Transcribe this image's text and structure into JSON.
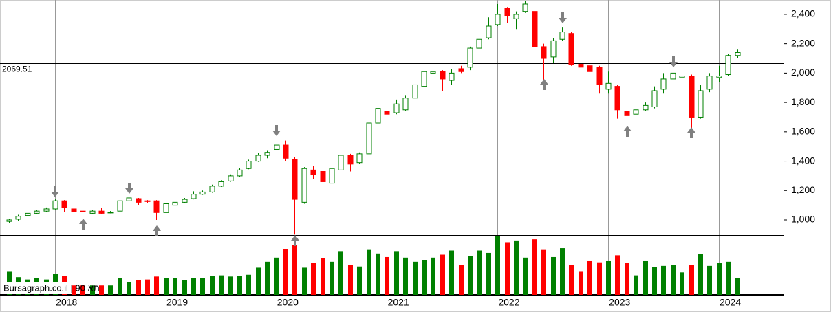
{
  "chart_data": {
    "type": "candlestick",
    "open": [
      990,
      1005,
      1030,
      1045,
      1060,
      1075,
      1130,
      1075,
      1060,
      1045,
      1060,
      1050,
      1060,
      1130,
      1145,
      1130,
      1130,
      1050,
      1100,
      1120,
      1145,
      1175,
      1190,
      1230,
      1265,
      1300,
      1350,
      1400,
      1440,
      1480,
      1510,
      1410,
      1120,
      1340,
      1330,
      1250,
      1340,
      1440,
      1390,
      1450,
      1660,
      1740,
      1730,
      1750,
      1830,
      1910,
      2000,
      2010,
      1950,
      2030,
      2040,
      2170,
      2240,
      2330,
      2440,
      2370,
      2420,
      2420,
      2180,
      2110,
      2230,
      2270,
      2060,
      2050,
      2040,
      1890,
      1910,
      1740,
      1720,
      1750,
      1770,
      1890,
      1960,
      1970,
      1980,
      1700,
      1890,
      1970,
      1990,
      2120
    ],
    "high": [
      1005,
      1035,
      1055,
      1070,
      1085,
      1140,
      1135,
      1085,
      1065,
      1070,
      1080,
      1060,
      1140,
      1160,
      1150,
      1135,
      1135,
      1120,
      1130,
      1150,
      1195,
      1200,
      1240,
      1270,
      1310,
      1355,
      1410,
      1455,
      1475,
      1535,
      1540,
      1430,
      1360,
      1370,
      1350,
      1370,
      1460,
      1450,
      1460,
      1670,
      1780,
      1750,
      1820,
      1850,
      1930,
      2040,
      2030,
      2020,
      2030,
      2050,
      2180,
      2260,
      2380,
      2470,
      2450,
      2420,
      2490,
      2420,
      2200,
      2240,
      2310,
      2280,
      2080,
      2070,
      2050,
      2010,
      1920,
      1800,
      1770,
      1800,
      1910,
      2000,
      2030,
      1990,
      1990,
      1920,
      2000,
      2050,
      2130,
      2160
    ],
    "low": [
      980,
      995,
      1025,
      1040,
      1055,
      1070,
      1055,
      1030,
      1040,
      1040,
      1040,
      1045,
      1060,
      1120,
      1100,
      1115,
      1000,
      1040,
      1095,
      1115,
      1140,
      1170,
      1185,
      1225,
      1260,
      1295,
      1345,
      1395,
      1420,
      1470,
      1400,
      900,
      1110,
      1280,
      1210,
      1240,
      1330,
      1330,
      1380,
      1440,
      1640,
      1670,
      1720,
      1740,
      1820,
      1900,
      1990,
      1880,
      1920,
      2000,
      2020,
      2140,
      2230,
      2320,
      2340,
      2300,
      2410,
      2050,
      1950,
      2070,
      2220,
      2050,
      1980,
      1960,
      1860,
      1860,
      1690,
      1650,
      1690,
      1740,
      1760,
      1860,
      1960,
      1960,
      1620,
      1690,
      1870,
      1940,
      1980,
      2100
    ],
    "close": [
      1000,
      1025,
      1045,
      1060,
      1075,
      1130,
      1085,
      1055,
      1055,
      1060,
      1045,
      1052,
      1130,
      1150,
      1120,
      1125,
      1050,
      1110,
      1120,
      1140,
      1175,
      1190,
      1230,
      1260,
      1300,
      1340,
      1400,
      1440,
      1460,
      1510,
      1420,
      1140,
      1350,
      1310,
      1260,
      1350,
      1440,
      1380,
      1450,
      1660,
      1760,
      1720,
      1790,
      1830,
      1920,
      2010,
      2010,
      1960,
      2000,
      2010,
      2170,
      2230,
      2320,
      2400,
      2390,
      2400,
      2470,
      2180,
      2100,
      2220,
      2280,
      2060,
      2040,
      2010,
      1920,
      1930,
      1750,
      1710,
      1750,
      1780,
      1880,
      1960,
      2000,
      1980,
      1700,
      1880,
      1980,
      1980,
      2120,
      2140
    ],
    "volume": [
      39,
      30,
      26,
      28,
      26,
      36,
      32,
      16,
      16,
      16,
      16,
      16,
      28,
      21,
      25,
      26,
      31,
      28,
      28,
      25,
      28,
      29,
      32,
      33,
      31,
      32,
      34,
      46,
      56,
      63,
      77,
      84,
      46,
      54,
      62,
      56,
      74,
      51,
      48,
      76,
      70,
      64,
      74,
      63,
      56,
      59,
      63,
      68,
      75,
      51,
      66,
      75,
      71,
      99,
      89,
      92,
      63,
      94,
      76,
      64,
      79,
      51,
      39,
      57,
      55,
      57,
      67,
      54,
      33,
      57,
      47,
      49,
      51,
      38,
      51,
      69,
      49,
      54,
      56,
      28
    ],
    "up_color": "#008000",
    "down_color": "#ff0000",
    "ylim": [
      897,
      2498
    ],
    "yticks": [
      {
        "value": 1000,
        "label": "1,000"
      },
      {
        "value": 1200,
        "label": "1,200"
      },
      {
        "value": 1400,
        "label": "1,400"
      },
      {
        "value": 1600,
        "label": "1,600"
      },
      {
        "value": 1800,
        "label": "1,800"
      },
      {
        "value": 2000,
        "label": "2,000"
      },
      {
        "value": 2200,
        "label": "2,200"
      },
      {
        "value": 2400,
        "label": "2,400"
      }
    ],
    "volume_ylim": [
      0,
      100
    ],
    "xticks": [
      2018,
      2019,
      2020,
      2021,
      2022,
      2023,
      2024
    ],
    "reference_line": 2069.51,
    "watermark": "Bursagraph.co.il | 90 תא"
  }
}
